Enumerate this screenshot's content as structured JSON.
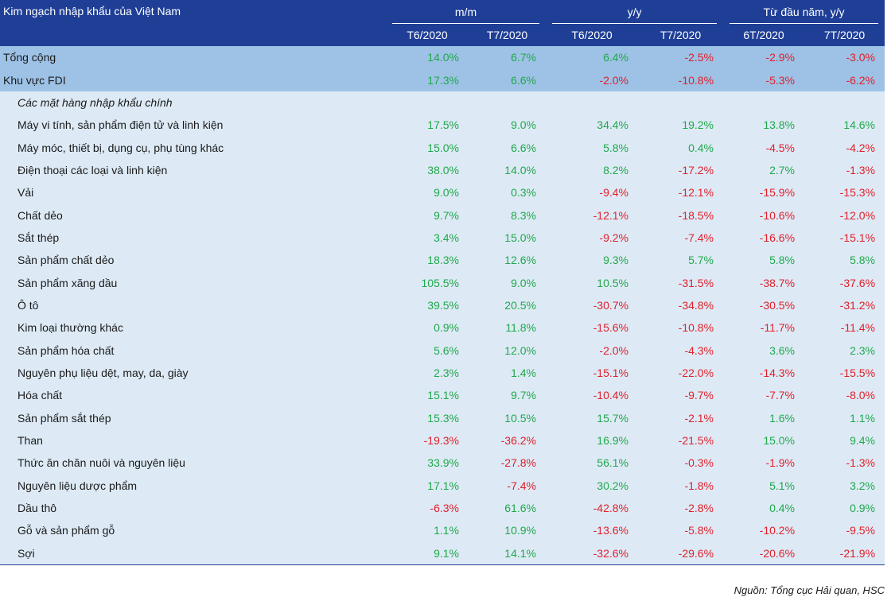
{
  "table": {
    "title": "Kim ngạch nhập khẩu của Việt Nam",
    "groups": [
      "m/m",
      "y/y",
      "Từ đầu năm, y/y"
    ],
    "subheaders": [
      "T6/2020",
      "T7/2020",
      "T6/2020",
      "T7/2020",
      "6T/2020",
      "7T/2020"
    ],
    "summary_rows": [
      {
        "label": "Tổng cộng",
        "values": [
          "14.0%",
          "6.7%",
          "6.4%",
          "-2.5%",
          "-2.9%",
          "-3.0%"
        ]
      },
      {
        "label": "Khu vực FDI",
        "values": [
          "17.3%",
          "6.6%",
          "-2.0%",
          "-10.8%",
          "-5.3%",
          "-6.2%"
        ]
      }
    ],
    "section_label": "Các mặt hàng nhập khẩu chính",
    "item_rows": [
      {
        "label": "Máy vi tính, sản phẩm điện tử và linh kiện",
        "values": [
          "17.5%",
          "9.0%",
          "34.4%",
          "19.2%",
          "13.8%",
          "14.6%"
        ]
      },
      {
        "label": "Máy móc, thiết bị, dụng cụ, phụ tùng khác",
        "values": [
          "15.0%",
          "6.6%",
          "5.8%",
          "0.4%",
          "-4.5%",
          "-4.2%"
        ]
      },
      {
        "label": "Điện thoại các loại và linh kiện",
        "values": [
          "38.0%",
          "14.0%",
          "8.2%",
          "-17.2%",
          "2.7%",
          "-1.3%"
        ]
      },
      {
        "label": "Vải",
        "values": [
          "9.0%",
          "0.3%",
          "-9.4%",
          "-12.1%",
          "-15.9%",
          "-15.3%"
        ]
      },
      {
        "label": "Chất dẻo",
        "values": [
          "9.7%",
          "8.3%",
          "-12.1%",
          "-18.5%",
          "-10.6%",
          "-12.0%"
        ]
      },
      {
        "label": "Sắt thép",
        "values": [
          "3.4%",
          "15.0%",
          "-9.2%",
          "-7.4%",
          "-16.6%",
          "-15.1%"
        ]
      },
      {
        "label": "Sản phẩm chất dẻo",
        "values": [
          "18.3%",
          "12.6%",
          "9.3%",
          "5.7%",
          "5.8%",
          "5.8%"
        ]
      },
      {
        "label": "Sản phẩm xăng dầu",
        "values": [
          "105.5%",
          "9.0%",
          "10.5%",
          "-31.5%",
          "-38.7%",
          "-37.6%"
        ]
      },
      {
        "label": "Ô tô",
        "values": [
          "39.5%",
          "20.5%",
          "-30.7%",
          "-34.8%",
          "-30.5%",
          "-31.2%"
        ]
      },
      {
        "label": "Kim loại thường khác",
        "values": [
          "0.9%",
          "11.8%",
          "-15.6%",
          "-10.8%",
          "-11.7%",
          "-11.4%"
        ]
      },
      {
        "label": "Sản phẩm hóa chất",
        "values": [
          "5.6%",
          "12.0%",
          "-2.0%",
          "-4.3%",
          "3.6%",
          "2.3%"
        ]
      },
      {
        "label": "Nguyên phụ liệu dệt, may, da, giày",
        "values": [
          "2.3%",
          "1.4%",
          "-15.1%",
          "-22.0%",
          "-14.3%",
          "-15.5%"
        ]
      },
      {
        "label": "Hóa chất",
        "values": [
          "15.1%",
          "9.7%",
          "-10.4%",
          "-9.7%",
          "-7.7%",
          "-8.0%"
        ]
      },
      {
        "label": "Sản phẩm sắt thép",
        "values": [
          "15.3%",
          "10.5%",
          "15.7%",
          "-2.1%",
          "1.6%",
          "1.1%"
        ]
      },
      {
        "label": "Than",
        "values": [
          "-19.3%",
          "-36.2%",
          "16.9%",
          "-21.5%",
          "15.0%",
          "9.4%"
        ]
      },
      {
        "label": "Thức ăn chăn nuôi và nguyên liệu",
        "values": [
          "33.9%",
          "-27.8%",
          "56.1%",
          "-0.3%",
          "-1.9%",
          "-1.3%"
        ]
      },
      {
        "label": "Nguyên liệu dược phẩm",
        "values": [
          "17.1%",
          "-7.4%",
          "30.2%",
          "-1.8%",
          "5.1%",
          "3.2%"
        ]
      },
      {
        "label": "Dầu thô",
        "values": [
          "-6.3%",
          "61.6%",
          "-42.8%",
          "-2.8%",
          "0.4%",
          "0.9%"
        ]
      },
      {
        "label": "Gỗ và sản phẩm gỗ",
        "values": [
          "1.1%",
          "10.9%",
          "-13.6%",
          "-5.8%",
          "-10.2%",
          "-9.5%"
        ]
      },
      {
        "label": "Sợi",
        "values": [
          "9.1%",
          "14.1%",
          "-32.6%",
          "-29.6%",
          "-20.6%",
          "-21.9%"
        ]
      }
    ]
  },
  "source_note": "Nguồn: Tổng cục Hải quan, HSC",
  "colors": {
    "header_bg": "#1f3f97",
    "highlight_row_bg": "#9dc2e6",
    "row_bg": "#ddeaf6",
    "positive": "#20a84a",
    "negative": "#e0202a"
  }
}
